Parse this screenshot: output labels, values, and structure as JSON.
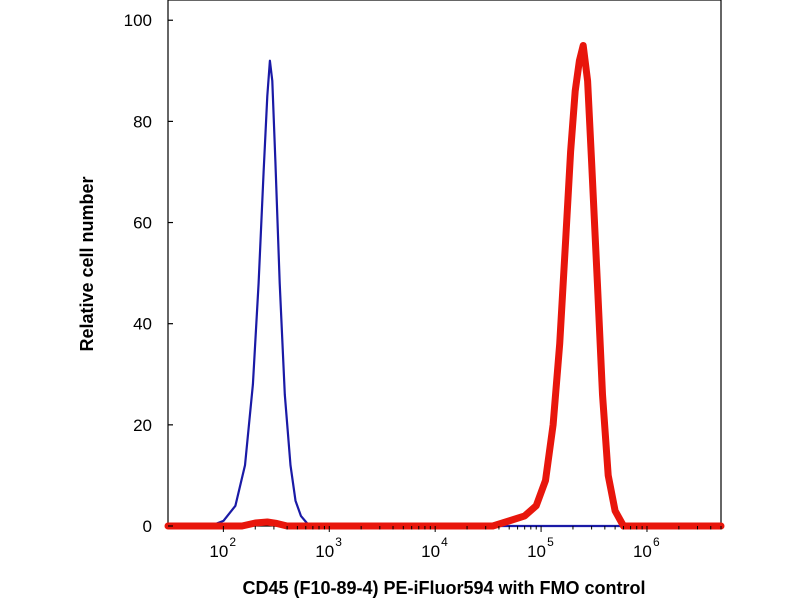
{
  "chart_data": {
    "type": "line",
    "title": "",
    "xlabel": "CD45 (F10-89-4) PE-iFluor594 with FMO control",
    "ylabel": "Relative cell number",
    "x_scale": "log",
    "xlim": [
      30,
      5000000
    ],
    "ylim": [
      0,
      104
    ],
    "x_ticks": [
      {
        "base": "10",
        "exp": "2",
        "value": 100
      },
      {
        "base": "10",
        "exp": "3",
        "value": 1000
      },
      {
        "base": "10",
        "exp": "4",
        "value": 10000
      },
      {
        "base": "10",
        "exp": "5",
        "value": 100000
      },
      {
        "base": "10",
        "exp": "6",
        "value": 1000000
      }
    ],
    "y_ticks": [
      "0",
      "20",
      "40",
      "60",
      "80",
      "100"
    ],
    "grid": false,
    "legend": "none",
    "series": [
      {
        "color": "#1a1aa6",
        "line_style": "thin",
        "x": [
          30,
          75,
          100,
          130,
          160,
          190,
          215,
          240,
          260,
          275,
          290,
          310,
          340,
          380,
          430,
          480,
          540,
          620,
          700,
          1000,
          10000,
          100000,
          1000000,
          5000000
        ],
        "y": [
          0,
          0,
          1,
          4,
          12,
          28,
          48,
          70,
          85,
          92,
          88,
          72,
          48,
          26,
          12,
          5,
          2,
          0.5,
          0,
          0,
          0,
          0,
          0,
          0
        ]
      },
      {
        "color": "#e8160c",
        "line_style": "thick",
        "x": [
          30,
          150,
          200,
          260,
          320,
          400,
          1000,
          10000,
          35000,
          50000,
          70000,
          90000,
          110000,
          130000,
          150000,
          170000,
          190000,
          210000,
          230000,
          250000,
          275000,
          300000,
          340000,
          380000,
          430000,
          500000,
          600000,
          1000000,
          5000000
        ],
        "y": [
          0,
          0,
          0.6,
          0.8,
          0.5,
          0,
          0,
          0,
          0,
          1,
          2,
          4,
          9,
          20,
          36,
          56,
          74,
          86,
          92,
          95,
          88,
          72,
          48,
          26,
          10,
          3,
          0,
          0,
          0
        ]
      }
    ]
  }
}
